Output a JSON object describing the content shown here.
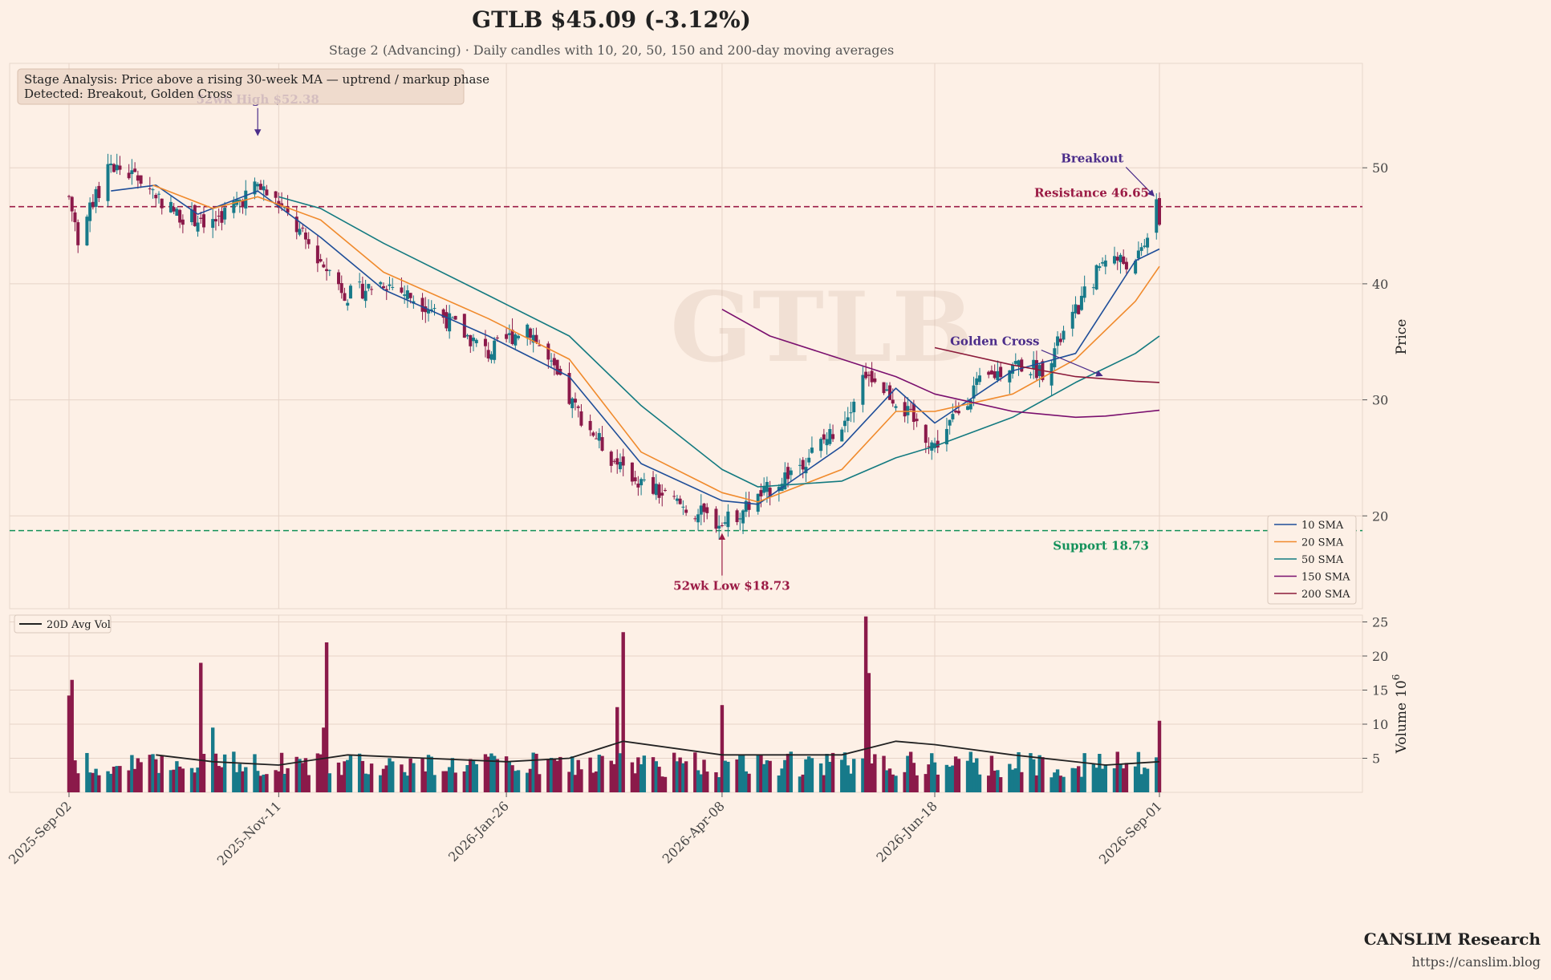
{
  "header": {
    "title": "GTLB  $45.09  (-3.12%)",
    "subtitle": "Stage 2 (Advancing)  ·  Daily candles with 10, 20, 50, 150 and 200-day moving averages"
  },
  "info_box": {
    "line1": "Stage Analysis: Price above a rising 30-week MA — uptrend / markup phase",
    "line2": "Detected: Breakout, Golden Cross"
  },
  "watermark": "GTLB",
  "footer": {
    "brand": "CANSLIM Research",
    "url": "https://canslim.blog"
  },
  "colors": {
    "background": "#fdf0e6",
    "up": "#177a8a",
    "down": "#8b1a4a",
    "sma10": "#1f4e99",
    "sma20": "#f08a2c",
    "sma50": "#137a80",
    "sma150": "#7a0f6e",
    "sma200": "#8b1a3a",
    "resistance": "#9b1b45",
    "support": "#13915a",
    "annotation": "#4b2d8a"
  },
  "chart_data": [
    {
      "type": "candlestick",
      "title": "GTLB  $45.09  (-3.12%)",
      "ylabel": "Price",
      "ylim": [
        12,
        59
      ],
      "y_ticks": [
        20,
        30,
        40,
        50
      ],
      "x_ticks": [
        "2025-Sep-02",
        "2025-Nov-11",
        "2026-Jan-26",
        "2026-Apr-08",
        "2026-Jun-18",
        "2026-Sep-01"
      ],
      "x_range": [
        "2025-Sep-02",
        "2026-Sep-01"
      ],
      "grid": true,
      "legend_position": "lower-right",
      "price_keypoints": [
        {
          "date": "2025-Sep-02",
          "close": 47.5
        },
        {
          "date": "2025-Sep-05",
          "close": 44.0
        },
        {
          "date": "2025-Sep-16",
          "close": 50.2
        },
        {
          "date": "2025-Sep-26",
          "close": 49.0
        },
        {
          "date": "2025-Oct-08",
          "close": 46.0
        },
        {
          "date": "2025-Oct-20",
          "close": 45.3
        },
        {
          "date": "2025-Nov-04",
          "close": 48.5
        },
        {
          "date": "2025-Nov-11",
          "close": 46.8
        },
        {
          "date": "2025-Nov-25",
          "close": 42.0
        },
        {
          "date": "2025-Dec-04",
          "close": 39.0
        },
        {
          "date": "2025-Dec-16",
          "close": 40.2
        },
        {
          "date": "2026-Jan-02",
          "close": 37.8
        },
        {
          "date": "2026-Jan-20",
          "close": 34.0
        },
        {
          "date": "2026-Feb-02",
          "close": 36.5
        },
        {
          "date": "2026-Feb-16",
          "close": 30.0
        },
        {
          "date": "2026-Mar-02",
          "close": 25.0
        },
        {
          "date": "2026-Mar-12",
          "close": 22.8
        },
        {
          "date": "2026-Mar-26",
          "close": 20.8
        },
        {
          "date": "2026-Apr-08",
          "close": 19.3
        },
        {
          "date": "2026-Apr-20",
          "close": 21.5
        },
        {
          "date": "2026-May-04",
          "close": 24.5
        },
        {
          "date": "2026-May-18",
          "close": 28.0
        },
        {
          "date": "2026-May-26",
          "close": 32.5
        },
        {
          "date": "2026-Jun-05",
          "close": 30.0
        },
        {
          "date": "2026-Jun-18",
          "close": 26.0
        },
        {
          "date": "2026-Jul-01",
          "close": 31.0
        },
        {
          "date": "2026-Jul-14",
          "close": 33.2
        },
        {
          "date": "2026-Jul-24",
          "close": 32.5
        },
        {
          "date": "2026-Aug-04",
          "close": 37.5
        },
        {
          "date": "2026-Aug-14",
          "close": 42.5
        },
        {
          "date": "2026-Aug-24",
          "close": 41.5
        },
        {
          "date": "2026-Aug-31",
          "close": 46.5
        },
        {
          "date": "2026-Sep-01",
          "close": 45.09
        }
      ],
      "series": [
        {
          "name": "10 SMA",
          "points": [
            [
              "2025-Sep-16",
              48.0
            ],
            [
              "2025-Oct-01",
              48.5
            ],
            [
              "2025-Oct-15",
              46.0
            ],
            [
              "2025-Nov-04",
              48.0
            ],
            [
              "2025-Nov-25",
              44.0
            ],
            [
              "2025-Dec-16",
              39.5
            ],
            [
              "2026-Jan-20",
              35.5
            ],
            [
              "2026-Feb-16",
              32.0
            ],
            [
              "2026-Mar-12",
              24.5
            ],
            [
              "2026-Apr-08",
              21.3
            ],
            [
              "2026-Apr-20",
              21.0
            ],
            [
              "2026-May-18",
              26.0
            ],
            [
              "2026-Jun-05",
              31.0
            ],
            [
              "2026-Jun-18",
              28.0
            ],
            [
              "2026-Jul-14",
              32.5
            ],
            [
              "2026-Aug-04",
              34.0
            ],
            [
              "2026-Aug-24",
              42.0
            ],
            [
              "2026-Sep-01",
              43.0
            ]
          ]
        },
        {
          "name": "20 SMA",
          "points": [
            [
              "2025-Sep-30",
              48.5
            ],
            [
              "2025-Oct-20",
              46.5
            ],
            [
              "2025-Nov-04",
              47.5
            ],
            [
              "2025-Nov-25",
              45.5
            ],
            [
              "2025-Dec-16",
              41.0
            ],
            [
              "2026-Jan-20",
              37.0
            ],
            [
              "2026-Feb-16",
              33.5
            ],
            [
              "2026-Mar-12",
              25.5
            ],
            [
              "2026-Apr-08",
              22.0
            ],
            [
              "2026-Apr-20",
              21.2
            ],
            [
              "2026-May-18",
              24.0
            ],
            [
              "2026-Jun-05",
              29.0
            ],
            [
              "2026-Jun-18",
              29.0
            ],
            [
              "2026-Jul-14",
              30.5
            ],
            [
              "2026-Aug-04",
              33.5
            ],
            [
              "2026-Aug-24",
              38.5
            ],
            [
              "2026-Sep-01",
              41.5
            ]
          ]
        },
        {
          "name": "50 SMA",
          "points": [
            [
              "2025-Nov-11",
              47.5
            ],
            [
              "2025-Nov-25",
              46.5
            ],
            [
              "2025-Dec-16",
              43.5
            ],
            [
              "2026-Jan-20",
              39.0
            ],
            [
              "2026-Feb-16",
              35.5
            ],
            [
              "2026-Mar-12",
              29.5
            ],
            [
              "2026-Apr-08",
              24.0
            ],
            [
              "2026-Apr-20",
              22.5
            ],
            [
              "2026-May-18",
              23.0
            ],
            [
              "2026-Jun-05",
              25.0
            ],
            [
              "2026-Jun-18",
              26.0
            ],
            [
              "2026-Jul-14",
              28.5
            ],
            [
              "2026-Aug-04",
              31.5
            ],
            [
              "2026-Aug-24",
              34.0
            ],
            [
              "2026-Sep-01",
              35.5
            ]
          ]
        },
        {
          "name": "150 SMA",
          "points": [
            [
              "2026-Apr-08",
              37.8
            ],
            [
              "2026-Apr-24",
              35.5
            ],
            [
              "2026-May-18",
              33.5
            ],
            [
              "2026-Jun-05",
              32.0
            ],
            [
              "2026-Jun-18",
              30.5
            ],
            [
              "2026-Jul-14",
              29.0
            ],
            [
              "2026-Aug-04",
              28.5
            ],
            [
              "2026-Aug-14",
              28.6
            ],
            [
              "2026-Sep-01",
              29.1
            ]
          ]
        },
        {
          "name": "200 SMA",
          "points": [
            [
              "2026-Jun-18",
              34.5
            ],
            [
              "2026-Jul-14",
              33.0
            ],
            [
              "2026-Aug-04",
              32.0
            ],
            [
              "2026-Aug-24",
              31.6
            ],
            [
              "2026-Sep-01",
              31.5
            ]
          ]
        }
      ],
      "levels": {
        "resistance": 46.65,
        "support": 18.73
      },
      "annotations": [
        {
          "text": "52wk High $52.38",
          "date": "2025-Nov-04",
          "price": 52.38
        },
        {
          "text": "52wk Low $18.73",
          "date": "2026-Apr-08",
          "price": 18.73
        },
        {
          "text": "Breakout",
          "date": "2026-Aug-31",
          "price": 46.6
        },
        {
          "text": "Golden Cross",
          "date": "2026-Aug-14",
          "price": 31.8
        },
        {
          "text": "Resistance 46.65",
          "price": 46.65
        },
        {
          "text": "Support 18.73",
          "price": 18.73
        }
      ]
    },
    {
      "type": "bar",
      "ylabel": "Volume",
      "y_exponent": "10",
      "y_exponent_power": "6",
      "ylim": [
        0,
        26
      ],
      "y_ticks": [
        5,
        10,
        15,
        20,
        25
      ],
      "legend": [
        "20D Avg Vol"
      ],
      "legend_position": "upper-left",
      "volume_spikes_millions": [
        {
          "date": "2025-Sep-02",
          "value": 14.2
        },
        {
          "date": "2025-Sep-03",
          "value": 16.5
        },
        {
          "date": "2025-Oct-16",
          "value": 19.0
        },
        {
          "date": "2025-Oct-20",
          "value": 9.5
        },
        {
          "date": "2025-Nov-26",
          "value": 9.5
        },
        {
          "date": "2025-Nov-27",
          "value": 22.0
        },
        {
          "date": "2026-Mar-04",
          "value": 12.5
        },
        {
          "date": "2026-Mar-06",
          "value": 23.5
        },
        {
          "date": "2026-Apr-08",
          "value": 12.8
        },
        {
          "date": "2026-May-26",
          "value": 25.8
        },
        {
          "date": "2026-May-27",
          "value": 17.5
        },
        {
          "date": "2026-Sep-01",
          "value": 10.5
        }
      ],
      "avg_series": {
        "name": "20D Avg Vol",
        "points": [
          [
            "2025-Oct-01",
            5.5
          ],
          [
            "2025-Oct-20",
            4.5
          ],
          [
            "2025-Nov-11",
            4.0
          ],
          [
            "2025-Dec-04",
            5.5
          ],
          [
            "2026-Jan-26",
            4.5
          ],
          [
            "2026-Feb-16",
            5.0
          ],
          [
            "2026-Mar-06",
            7.5
          ],
          [
            "2026-Apr-08",
            5.5
          ],
          [
            "2026-May-18",
            5.5
          ],
          [
            "2026-Jun-05",
            7.5
          ],
          [
            "2026-Jun-18",
            7.0
          ],
          [
            "2026-Jul-14",
            5.5
          ],
          [
            "2026-Aug-14",
            4.0
          ],
          [
            "2026-Sep-01",
            4.5
          ]
        ]
      }
    }
  ]
}
